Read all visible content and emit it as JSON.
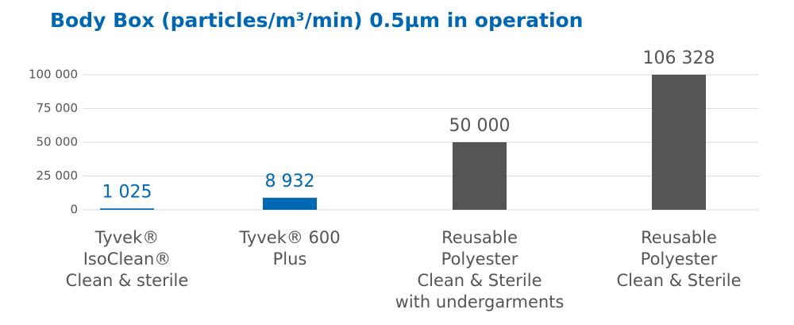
{
  "chart_data": {
    "type": "bar",
    "title": "Body Box (particles/m³/min) 0.5µm in operation",
    "categories": [
      [
        "Tyvek®",
        "IsoClean®",
        "Clean & sterile"
      ],
      [
        "Tyvek® 600",
        "Plus"
      ],
      [
        "Reusable",
        "Polyester",
        "Clean & Sterile",
        "with undergarments"
      ],
      [
        "Reusable",
        "Polyester",
        "Clean & Sterile"
      ]
    ],
    "values": [
      1025,
      8932,
      50000,
      106328
    ],
    "value_labels": [
      "1 025",
      "8 932",
      "50 000",
      "106 328"
    ],
    "colors": [
      "#0067b2",
      "#0067b2",
      "#555555",
      "#555555"
    ],
    "ylim": [
      0,
      100000
    ],
    "yticks": [
      0,
      {
        "value": 25000,
        "label": "25 000"
      },
      {
        "value": 50000,
        "label": "50 000"
      },
      {
        "value": 75000,
        "label": "75 000"
      },
      {
        "value": 100000,
        "label": "100 000"
      }
    ],
    "grid": true
  }
}
